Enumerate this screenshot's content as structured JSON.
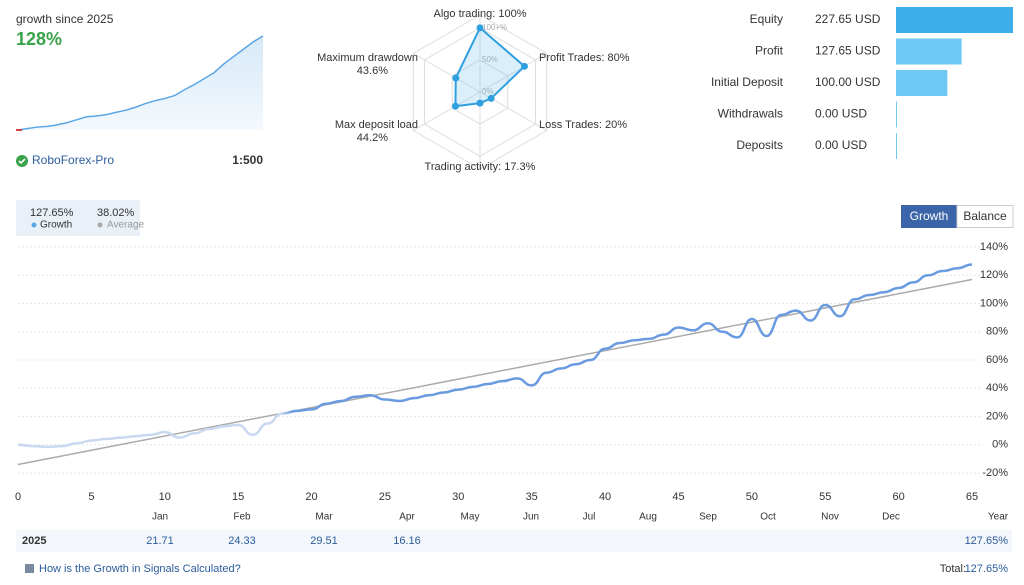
{
  "header": {
    "title": "growth since 2025",
    "growth": "128%",
    "broker": "RoboForex-Pro",
    "leverage": "1:500"
  },
  "summary": {
    "growth": "127.65%",
    "growth_label": "Growth",
    "average": "38.02%",
    "average_label": "Average"
  },
  "buttons": [
    "Growth",
    "Balance"
  ],
  "chart_data": [
    {
      "type": "sparkline",
      "color": "#5ba6e6",
      "values": [
        0,
        2,
        4,
        5,
        7,
        10,
        14,
        18,
        19,
        21,
        24,
        27,
        31,
        36,
        40,
        43,
        47,
        55,
        62,
        70,
        78,
        90,
        100,
        110,
        120,
        128
      ]
    },
    {
      "type": "radar",
      "color": "#2f9fe0",
      "categories": [
        "Algo trading",
        "Profit Trades",
        "Loss Trades",
        "Trading activity",
        "Max deposit load",
        "Maximum drawdown"
      ],
      "values": [
        100,
        80,
        20,
        17.3,
        44.2,
        43.6
      ],
      "value_labels": [
        "100%",
        "80%",
        "20%",
        "17.3%",
        "44.2%",
        "43.6%"
      ],
      "rlim": [
        0,
        120
      ],
      "rticks": [
        {
          "value": 0,
          "label": "0%"
        },
        {
          "value": 50,
          "label": "50%"
        },
        {
          "value": 100,
          "label": "100+%"
        }
      ]
    },
    {
      "type": "hbar",
      "categories": [
        "Equity",
        "Profit",
        "Initial Deposit",
        "Withdrawals",
        "Deposits"
      ],
      "values": [
        227.65,
        127.65,
        100,
        0,
        0
      ],
      "value_labels": [
        "227.65 USD",
        "127.65 USD",
        "100.00 USD",
        "0.00 USD",
        "0.00 USD"
      ],
      "colors": [
        "#3daeea",
        "#6ec8f3",
        "#6ec8f3",
        "#6ec8f3",
        "#6ec8f3"
      ]
    },
    {
      "type": "line",
      "x": [
        0,
        1,
        2,
        3,
        4,
        5,
        6,
        7,
        8,
        9,
        10,
        11,
        12,
        13,
        14,
        15,
        16,
        17,
        18,
        19,
        20,
        21,
        22,
        23,
        24,
        25,
        26,
        27,
        28,
        29,
        30,
        31,
        32,
        33,
        34,
        35,
        36,
        37,
        38,
        39,
        40,
        41,
        42,
        43,
        44,
        45,
        46,
        47,
        48,
        49,
        50,
        51,
        52,
        53,
        54,
        55,
        56,
        57,
        58,
        59,
        60,
        61,
        62,
        63,
        64,
        65
      ],
      "series": [
        {
          "name": "Growth",
          "color": "#6a9be0",
          "values": [
            0,
            -1,
            -1.5,
            -1,
            1,
            3,
            4,
            5,
            6,
            7,
            9,
            5,
            8,
            11,
            13,
            14,
            7,
            15,
            22,
            24,
            25,
            29,
            31,
            34,
            35,
            32,
            31,
            33,
            35,
            37,
            39,
            41,
            43,
            45,
            47,
            42,
            51,
            54,
            57,
            60,
            68,
            72,
            74,
            75,
            78,
            83,
            81,
            86,
            80,
            76,
            89,
            77,
            92,
            95,
            88,
            99,
            91,
            103,
            106,
            108,
            111,
            115,
            120,
            123,
            125,
            127.65
          ]
        }
      ],
      "trend": {
        "x": [
          0,
          65
        ],
        "values": [
          -14,
          117
        ],
        "color": "#aaaaaa"
      },
      "xlim": [
        0,
        65
      ],
      "xticks": [
        0,
        5,
        10,
        15,
        20,
        25,
        30,
        35,
        40,
        45,
        50,
        55,
        60,
        65
      ],
      "ylim": [
        -25,
        145
      ],
      "yticks": [
        {
          "value": -20,
          "label": "-20%"
        },
        {
          "value": 0,
          "label": "0%"
        },
        {
          "value": 20,
          "label": "20%"
        },
        {
          "value": 40,
          "label": "40%"
        },
        {
          "value": 60,
          "label": "60%"
        },
        {
          "value": 80,
          "label": "80%"
        },
        {
          "value": 100,
          "label": "100%"
        },
        {
          "value": 120,
          "label": "120%"
        },
        {
          "value": 140,
          "label": "140%"
        }
      ],
      "grid": true,
      "months": [
        "Jan",
        "Feb",
        "Mar",
        "Apr",
        "May",
        "Jun",
        "Jul",
        "Aug",
        "Sep",
        "Oct",
        "Nov",
        "Dec",
        "Year"
      ]
    }
  ],
  "table": {
    "year": "2025",
    "cells": [
      "21.71",
      "24.33",
      "29.51",
      "16.16"
    ],
    "total": "127.65%"
  },
  "footer": {
    "link": "How is the Growth in Signals Calculated?",
    "total_label": "Total:",
    "total": "127.65%"
  }
}
